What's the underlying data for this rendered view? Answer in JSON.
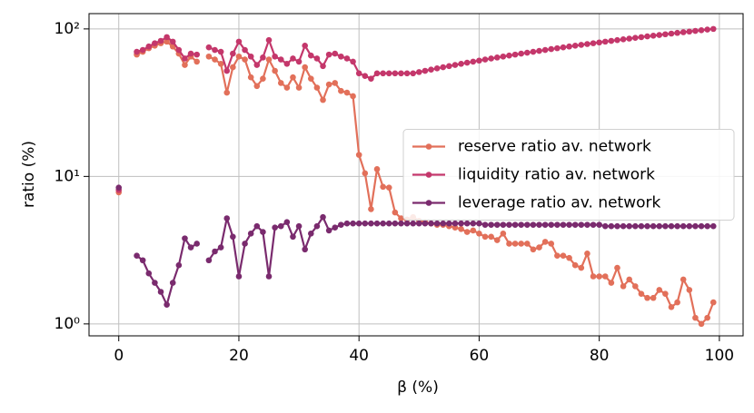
{
  "chart_data": {
    "type": "line",
    "xlabel": "β (%)",
    "ylabel": "ratio (%)",
    "xlim": [
      -4.95,
      103.95
    ],
    "xticks": [
      0,
      20,
      40,
      60,
      80,
      100
    ],
    "ylim": [
      0.83,
      127
    ],
    "yticks": [
      {
        "value": 1,
        "label": "10⁰"
      },
      {
        "value": 10,
        "label": "10¹"
      },
      {
        "value": 100,
        "label": "10²"
      }
    ],
    "log_y": true,
    "grid": true,
    "legend": "center right",
    "x": [
      0,
      1,
      2,
      3,
      4,
      5,
      6,
      7,
      8,
      9,
      10,
      11,
      12,
      13,
      14,
      15,
      16,
      17,
      18,
      19,
      20,
      21,
      22,
      23,
      24,
      25,
      26,
      27,
      28,
      29,
      30,
      31,
      32,
      33,
      34,
      35,
      36,
      37,
      38,
      39,
      40,
      41,
      42,
      43,
      44,
      45,
      46,
      47,
      48,
      49,
      50,
      51,
      52,
      53,
      54,
      55,
      56,
      57,
      58,
      59,
      60,
      61,
      62,
      63,
      64,
      65,
      66,
      67,
      68,
      69,
      70,
      71,
      72,
      73,
      74,
      75,
      76,
      77,
      78,
      79,
      80,
      81,
      82,
      83,
      84,
      85,
      86,
      87,
      88,
      89,
      90,
      91,
      92,
      93,
      94,
      95,
      96,
      97,
      98,
      99
    ],
    "series": [
      {
        "name": "reserve ratio av. network",
        "color": "#e2705a",
        "values": [
          7.8,
          null,
          null,
          67,
          70,
          74,
          77,
          80,
          82,
          76,
          68,
          57,
          65,
          60,
          null,
          65,
          62,
          58,
          37,
          55,
          65,
          62,
          47,
          41,
          46,
          62,
          52,
          43,
          40,
          47,
          40,
          55,
          46,
          40,
          33,
          42,
          43,
          38,
          37,
          35,
          14,
          10.5,
          6,
          11.2,
          8.5,
          8.4,
          5.7,
          5.2,
          5.1,
          5.3,
          5.0,
          4.9,
          4.8,
          4.7,
          4.7,
          4.6,
          4.5,
          4.4,
          4.2,
          4.3,
          4.1,
          3.9,
          3.9,
          3.7,
          4.1,
          3.5,
          3.5,
          3.5,
          3.5,
          3.2,
          3.3,
          3.6,
          3.5,
          2.9,
          2.9,
          2.8,
          2.5,
          2.4,
          3.0,
          2.1,
          2.1,
          2.1,
          1.9,
          2.4,
          1.8,
          2.0,
          1.8,
          1.6,
          1.5,
          1.5,
          1.7,
          1.6,
          1.3,
          1.4,
          2.0,
          1.7,
          1.1,
          1.0,
          1.1,
          1.4
        ]
      },
      {
        "name": "liquidity ratio av. network",
        "color": "#c4376b",
        "values": [
          8.1,
          null,
          null,
          70,
          72,
          76,
          80,
          83,
          88,
          82,
          72,
          63,
          68,
          67,
          null,
          75,
          72,
          70,
          52,
          68,
          82,
          72,
          65,
          57,
          64,
          84,
          65,
          62,
          58,
          63,
          60,
          77,
          66,
          63,
          56,
          67,
          68,
          65,
          63,
          60,
          50,
          48,
          46,
          50,
          50,
          50,
          50,
          50,
          50,
          50,
          51,
          52,
          53,
          54,
          55,
          56,
          57,
          58,
          59,
          60,
          61,
          62,
          63,
          64,
          65,
          66,
          67,
          68,
          69,
          70,
          71,
          72,
          73,
          74,
          75,
          76,
          77,
          78,
          79,
          80,
          81,
          82,
          83,
          84,
          85,
          86,
          87,
          88,
          89,
          90,
          91,
          92,
          93,
          94,
          95,
          96,
          97,
          98,
          99,
          100
        ]
      },
      {
        "name": "leverage ratio av. network",
        "color": "#7a2b6e",
        "values": [
          8.4,
          null,
          null,
          2.9,
          2.7,
          2.2,
          1.9,
          1.65,
          1.35,
          1.9,
          2.5,
          3.8,
          3.3,
          3.5,
          null,
          2.7,
          3.1,
          3.3,
          5.2,
          3.9,
          2.1,
          3.5,
          4.1,
          4.6,
          4.2,
          2.1,
          4.5,
          4.6,
          4.9,
          3.9,
          4.6,
          3.2,
          4.1,
          4.6,
          5.3,
          4.3,
          4.5,
          4.7,
          4.8,
          4.8,
          4.8,
          4.8,
          4.8,
          4.8,
          4.8,
          4.8,
          4.8,
          4.8,
          4.8,
          4.8,
          4.8,
          4.8,
          4.8,
          4.8,
          4.8,
          4.8,
          4.8,
          4.8,
          4.8,
          4.8,
          4.8,
          4.7,
          4.7,
          4.7,
          4.7,
          4.7,
          4.7,
          4.7,
          4.7,
          4.7,
          4.7,
          4.7,
          4.7,
          4.7,
          4.7,
          4.7,
          4.7,
          4.7,
          4.7,
          4.7,
          4.7,
          4.6,
          4.6,
          4.6,
          4.6,
          4.6,
          4.6,
          4.6,
          4.6,
          4.6,
          4.6,
          4.6,
          4.6,
          4.6,
          4.6,
          4.6,
          4.6,
          4.6,
          4.6,
          4.6
        ]
      }
    ]
  }
}
